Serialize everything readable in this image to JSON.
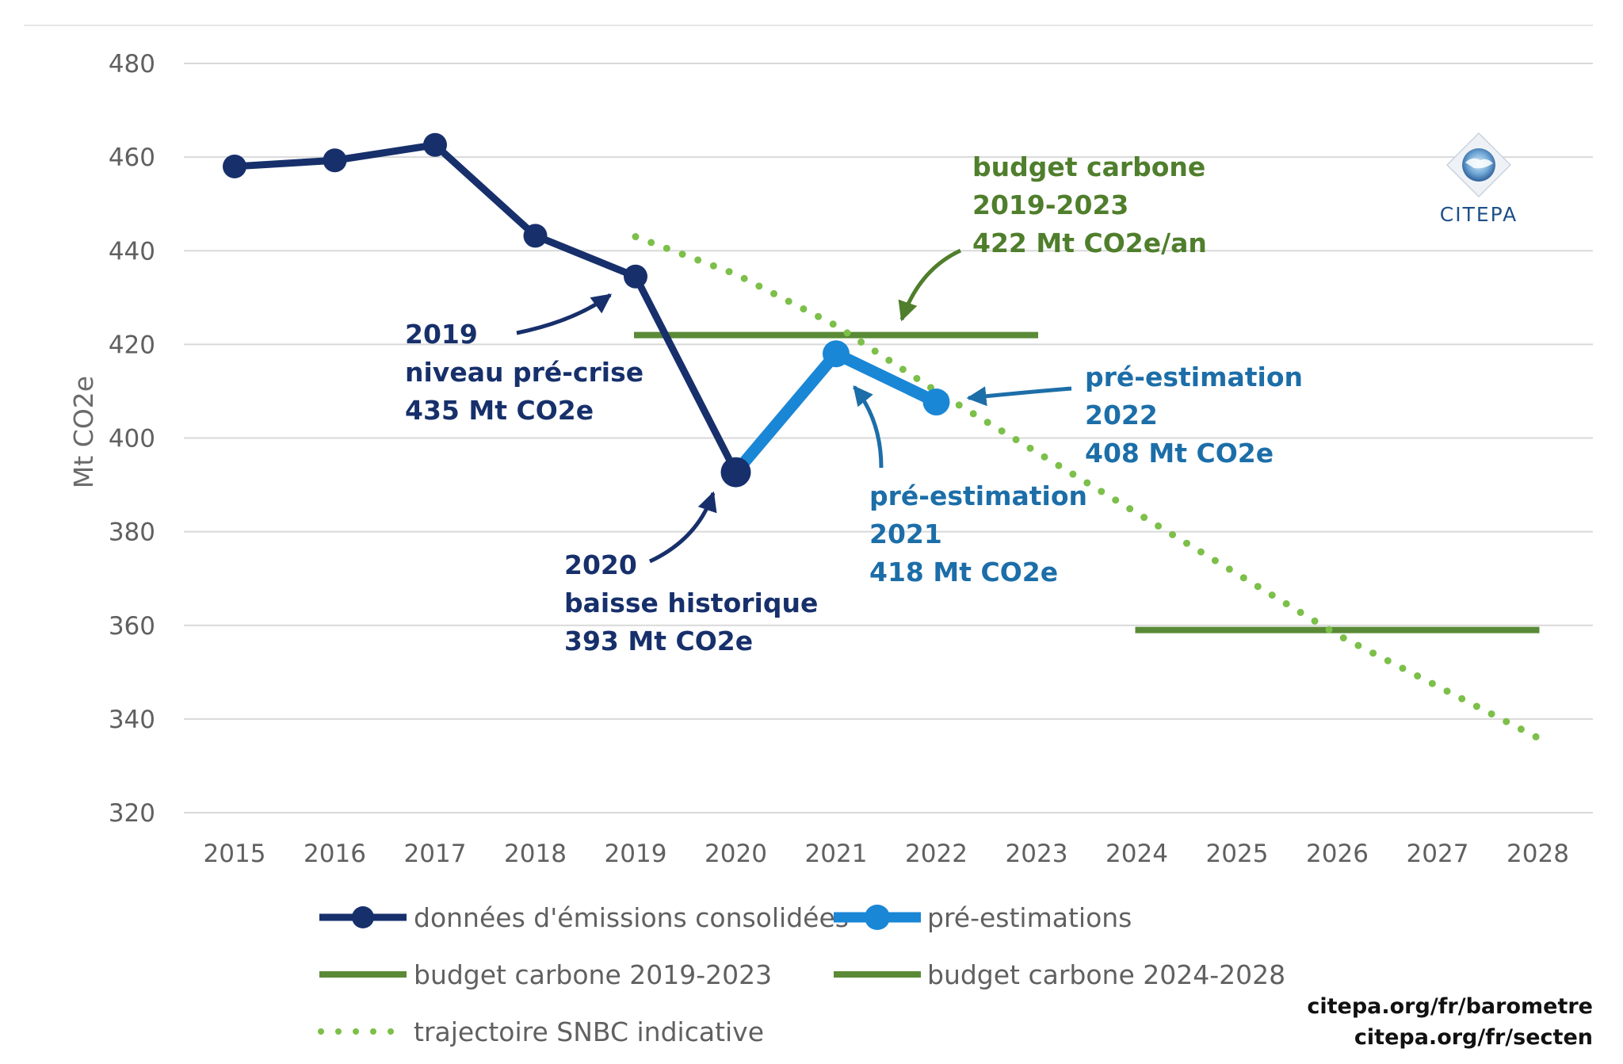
{
  "colors": {
    "consolidated": "#17306b",
    "preestimation": "#1a86d6",
    "budget": "#5a8a36",
    "snbc": "#7cbf49",
    "grid": "#d9d9d9",
    "annotation_green": "#4f7e2c",
    "annotation_blue": "#1c6ea8",
    "annotation_navy": "#17306b"
  },
  "logo": {
    "text": "CITEPA"
  },
  "footer": {
    "links": [
      "citepa.org/fr/barometre",
      "citepa.org/fr/secten"
    ]
  },
  "chart_data": {
    "type": "line",
    "ylabel": "Mt CO2e",
    "xlabel": "",
    "ylim": [
      320,
      480
    ],
    "yticks": [
      320,
      340,
      360,
      380,
      400,
      420,
      440,
      460,
      480
    ],
    "categories": [
      "2015",
      "2016",
      "2017",
      "2018",
      "2019",
      "2020",
      "2021",
      "2022",
      "2023",
      "2024",
      "2025",
      "2026",
      "2027",
      "2028"
    ],
    "grid": true,
    "legend_position": "bottom",
    "series": [
      {
        "name": "données d'émissions consolidées",
        "style": "line-marker",
        "x": [
          2015,
          2016,
          2017,
          2018,
          2019,
          2020
        ],
        "values": [
          458,
          459.3,
          462.6,
          443.2,
          434.5,
          392.7
        ]
      },
      {
        "name": "pré-estimations",
        "style": "thick-line-marker",
        "x": [
          2020,
          2021,
          2022
        ],
        "values": [
          392.7,
          418,
          407.7
        ]
      },
      {
        "name": "budget carbone 2019-2023",
        "style": "hline",
        "x": [
          2019,
          2023
        ],
        "values": [
          422,
          422
        ]
      },
      {
        "name": "budget carbone 2024-2028",
        "style": "hline",
        "x": [
          2024,
          2028
        ],
        "values": [
          359,
          359
        ]
      },
      {
        "name": "trajectoire SNBC indicative",
        "style": "dotted",
        "x": [
          2019,
          2020,
          2021,
          2022,
          2023,
          2024,
          2025,
          2026,
          2027,
          2028
        ],
        "values": [
          443,
          435,
          424,
          410,
          397,
          384,
          371,
          358,
          347,
          336
        ]
      }
    ],
    "annotations": [
      {
        "lines": [
          "2019",
          "niveau pré-crise",
          "435 Mt CO2e"
        ],
        "color": "navy"
      },
      {
        "lines": [
          "2020",
          "baisse historique",
          "393 Mt CO2e"
        ],
        "color": "navy"
      },
      {
        "lines": [
          "pré-estimation",
          "2021",
          "418 Mt CO2e"
        ],
        "color": "blue"
      },
      {
        "lines": [
          "pré-estimation",
          "2022",
          "408 Mt CO2e"
        ],
        "color": "blue"
      },
      {
        "lines": [
          "budget carbone",
          "2019-2023",
          "422 Mt CO2e/an"
        ],
        "color": "green"
      }
    ]
  }
}
